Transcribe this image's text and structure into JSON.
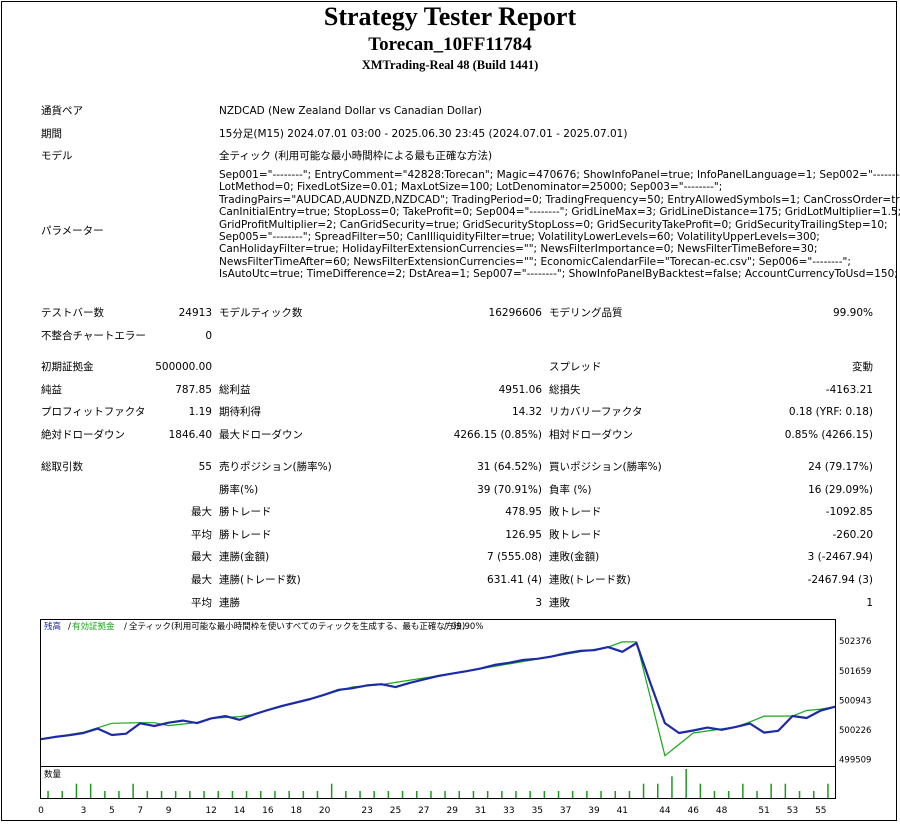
{
  "report": {
    "title": "Strategy Tester Report",
    "ea_name": "Torecan_10FF11784",
    "server": "XMTrading-Real 48 (Build 1441)"
  },
  "info": {
    "symbol_label": "通貨ペア",
    "symbol_value": "NZDCAD (New Zealand Dollar vs Canadian Dollar)",
    "period_label": "期間",
    "period_value": "15分足(M15) 2024.07.01 03:00 - 2025.06.30 23:45 (2024.07.01 - 2025.07.01)",
    "model_label": "モデル",
    "model_value": "全ティック (利用可能な最小時間枠による最も正確な方法)",
    "params_label": "パラメーター",
    "params_lines": [
      "Sep001=\"--------\"; EntryComment=\"42828:Torecan\"; Magic=470676; ShowInfoPanel=true; InfoPanelLanguage=1; Sep002=\"--------\";",
      "LotMethod=0; FixedLotSize=0.01; MaxLotSize=100; LotDenominator=25000; Sep003=\"--------\";",
      "TradingPairs=\"AUDCAD,AUDNZD,NZDCAD\"; TradingPeriod=0; TradingFrequency=50; EntryAllowedSymbols=1; CanCrossOrder=true;",
      "CanInitialEntry=true; StopLoss=0; TakeProfit=0; Sep004=\"--------\"; GridLineMax=3; GridLineDistance=175; GridLotMultiplier=1.5;",
      "GridProfitMultiplier=2; CanGridSecurity=true; GridSecurityStopLoss=0; GridSecurityTakeProfit=0; GridSecurityTrailingStep=10;",
      "Sep005=\"--------\"; SpreadFilter=50; CanIlliquidityFilter=true; VolatilityLowerLevels=60; VolatilityUpperLevels=300;",
      "CanHolidayFilter=true; HolidayFilterExtensionCurrencies=\"\"; NewsFilterImportance=0; NewsFilterTimeBefore=30;",
      "NewsFilterTimeAfter=60; NewsFilterExtensionCurrencies=\"\"; EconomicCalendarFile=\"Torecan-ec.csv\"; Sep006=\"--------\";",
      "IsAutoUtc=true; TimeDifference=2; DstArea=1; Sep007=\"--------\"; ShowInfoPanelByBacktest=false; AccountCurrencyToUsd=150;"
    ]
  },
  "stats": {
    "bars_label": "テストバー数",
    "bars_value": "24913",
    "ticks_label": "モデルティック数",
    "ticks_value": "16296606",
    "quality_label": "モデリング品質",
    "quality_value": "99.90%",
    "mismatch_label": "不整合チャートエラー",
    "mismatch_value": "0",
    "deposit_label": "初期証拠金",
    "deposit_value": "500000.00",
    "spread_label": "スプレッド",
    "spread_value": "変動",
    "net_label": "純益",
    "net_value": "787.85",
    "gross_profit_label": "総利益",
    "gross_profit_value": "4951.06",
    "gross_loss_label": "総損失",
    "gross_loss_value": "-4163.21",
    "pf_label": "プロフィットファクタ",
    "pf_value": "1.19",
    "expected_label": "期待利得",
    "expected_value": "14.32",
    "recovery_label": "リカバリーファクタ",
    "recovery_value": "0.18 (YRF: 0.18)",
    "abs_dd_label": "絶対ドローダウン",
    "abs_dd_value": "1846.40",
    "max_dd_label": "最大ドローダウン",
    "max_dd_value": "4266.15 (0.85%)",
    "rel_dd_label": "相対ドローダウン",
    "rel_dd_value": "0.85% (4266.15)",
    "total_trades_label": "総取引数",
    "total_trades_value": "55",
    "short_label": "売りポジション(勝率%)",
    "short_value": "31 (64.52%)",
    "long_label": "買いポジション(勝率%)",
    "long_value": "24 (79.17%)",
    "win_rate_label": "勝率(%)",
    "win_rate_value": "39 (70.91%)",
    "loss_rate_label": "負率 (%)",
    "loss_rate_value": "16 (29.09%)",
    "max_label": "最大",
    "avg_label": "平均",
    "max_win_label": "勝トレード",
    "max_win_value": "478.95",
    "max_loss_label": "敗トレード",
    "max_loss_value": "-1092.85",
    "avg_win_label": "勝トレード",
    "avg_win_value": "126.95",
    "avg_loss_label": "敗トレード",
    "avg_loss_value": "-260.20",
    "cons_win_amt_label": "連勝(金額)",
    "cons_win_amt_value": "7 (555.08)",
    "cons_loss_amt_label": "連敗(金額)",
    "cons_loss_amt_value": "3 (-2467.94)",
    "cons_win_cnt_label": "連勝(トレード数)",
    "cons_win_cnt_value": "631.41 (4)",
    "cons_loss_cnt_label": "連敗(トレード数)",
    "cons_loss_cnt_value": "-2467.94 (3)",
    "avg_cons_win_label": "連勝",
    "avg_cons_win_value": "3",
    "avg_cons_loss_label": "連敗",
    "avg_cons_loss_value": "1"
  },
  "chart_data": {
    "type": "line",
    "legend": {
      "balance": "残高",
      "equity": "有効証拠金",
      "desc": "全ティック(利用可能な最小時間枠を使いすべてのティックを生成する、最も正確な方法)",
      "quality": "99.90%"
    },
    "y_ticks": [
      499509,
      500226,
      500943,
      501659,
      502376
    ],
    "y_range": [
      499350,
      502600
    ],
    "x_range": [
      0,
      56
    ],
    "x_ticks": [
      0,
      3,
      5,
      7,
      9,
      12,
      14,
      16,
      18,
      20,
      23,
      25,
      27,
      29,
      31,
      33,
      35,
      37,
      39,
      41,
      44,
      46,
      48,
      51,
      53,
      55
    ],
    "colors": {
      "balance": "#1c2aa6",
      "equity": "#18a818",
      "volume": "#1c9a1c"
    },
    "balance": [
      [
        0,
        500000
      ],
      [
        1,
        500056
      ],
      [
        2,
        500098
      ],
      [
        3,
        500150
      ],
      [
        4,
        500257
      ],
      [
        5,
        500102
      ],
      [
        6,
        500133
      ],
      [
        7,
        500385
      ],
      [
        8,
        500320
      ],
      [
        9,
        500400
      ],
      [
        10,
        500450
      ],
      [
        11,
        500390
      ],
      [
        12,
        500504
      ],
      [
        13,
        500560
      ],
      [
        14,
        500470
      ],
      [
        15,
        500598
      ],
      [
        16,
        500707
      ],
      [
        17,
        500807
      ],
      [
        18,
        500889
      ],
      [
        19,
        500976
      ],
      [
        20,
        501080
      ],
      [
        21,
        501198
      ],
      [
        22,
        501240
      ],
      [
        23,
        501305
      ],
      [
        24,
        501335
      ],
      [
        25,
        501264
      ],
      [
        26,
        501366
      ],
      [
        27,
        501450
      ],
      [
        28,
        501534
      ],
      [
        29,
        501590
      ],
      [
        30,
        501649
      ],
      [
        31,
        501712
      ],
      [
        32,
        501803
      ],
      [
        33,
        501854
      ],
      [
        34,
        501920
      ],
      [
        35,
        501950
      ],
      [
        36,
        502003
      ],
      [
        37,
        502084
      ],
      [
        38,
        502142
      ],
      [
        39,
        502158
      ],
      [
        40,
        502234
      ],
      [
        41,
        502120
      ],
      [
        42,
        502330
      ],
      [
        43,
        501340
      ],
      [
        44,
        500390
      ],
      [
        45,
        500150
      ],
      [
        46,
        500210
      ],
      [
        47,
        500281
      ],
      [
        48,
        500227
      ],
      [
        49,
        500298
      ],
      [
        50,
        500380
      ],
      [
        51,
        500161
      ],
      [
        52,
        500203
      ],
      [
        53,
        500563
      ],
      [
        54,
        500514
      ],
      [
        55,
        500695
      ],
      [
        56,
        500788
      ]
    ],
    "equity": [
      [
        0,
        500000
      ],
      [
        3,
        500170
      ],
      [
        5,
        500385
      ],
      [
        7,
        500400
      ],
      [
        8,
        500400
      ],
      [
        9,
        500330
      ],
      [
        11,
        500404
      ],
      [
        12,
        500504
      ],
      [
        14,
        500548
      ],
      [
        15,
        500598
      ],
      [
        20,
        501080
      ],
      [
        22,
        501270
      ],
      [
        24,
        501324
      ],
      [
        29,
        501590
      ],
      [
        40,
        502234
      ],
      [
        41,
        502360
      ],
      [
        42,
        502360
      ],
      [
        44,
        499600
      ],
      [
        46,
        500150
      ],
      [
        49,
        500298
      ],
      [
        50,
        500420
      ],
      [
        51,
        500560
      ],
      [
        52,
        500560
      ],
      [
        53,
        500563
      ],
      [
        54,
        500695
      ],
      [
        55,
        500730
      ],
      [
        56,
        500788
      ]
    ],
    "volume_label": "数量",
    "volume": [
      1,
      1,
      2,
      2,
      1,
      1,
      2,
      1,
      1,
      1,
      1,
      1,
      1,
      1,
      1,
      1,
      1,
      1,
      1,
      1,
      2,
      1,
      1,
      1,
      1,
      1,
      1,
      1,
      1,
      1,
      1,
      1,
      1,
      1,
      1,
      1,
      1,
      1,
      1,
      1,
      1,
      1,
      2,
      2,
      3,
      4,
      2,
      1,
      1,
      2,
      1,
      2,
      2,
      1,
      1,
      2
    ]
  }
}
